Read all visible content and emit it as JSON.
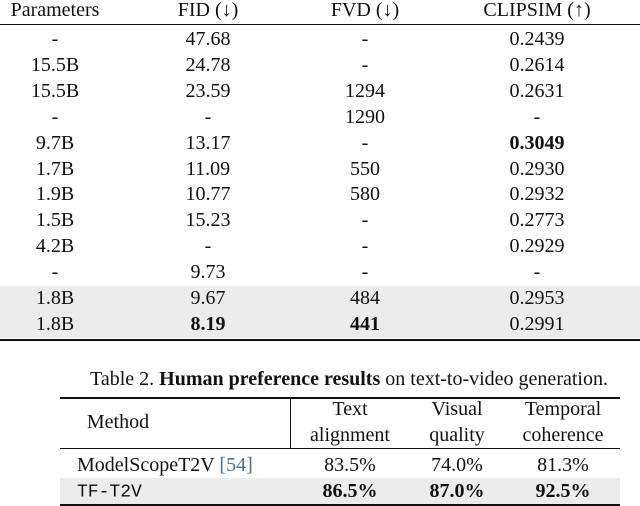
{
  "table1": {
    "header": [
      "Parameters",
      "FID (↓)",
      "FVD (↓)",
      "CLIPSIM (↑)"
    ],
    "rows": [
      {
        "cells": [
          "-",
          "47.68",
          "-",
          "0.2439"
        ]
      },
      {
        "cells": [
          "15.5B",
          "24.78",
          "-",
          "0.2614"
        ]
      },
      {
        "cells": [
          "15.5B",
          "23.59",
          "1294",
          "0.2631"
        ]
      },
      {
        "cells": [
          "-",
          "-",
          "1290",
          "-"
        ]
      },
      {
        "cells": [
          "9.7B",
          "13.17",
          "-",
          {
            "text": "0.3049",
            "bold": true
          }
        ]
      },
      {
        "cells": [
          "1.7B",
          "11.09",
          "550",
          "0.2930"
        ]
      },
      {
        "cells": [
          "1.9B",
          "10.77",
          "580",
          "0.2932"
        ]
      },
      {
        "cells": [
          "1.5B",
          "15.23",
          "-",
          "0.2773"
        ]
      },
      {
        "cells": [
          "4.2B",
          "-",
          "-",
          "0.2929"
        ]
      },
      {
        "cells": [
          "-",
          "9.73",
          "-",
          "-"
        ]
      },
      {
        "cells": [
          "1.8B",
          "9.67",
          "484",
          "0.2953"
        ],
        "highlight": true
      },
      {
        "cells": [
          "1.8B",
          {
            "text": "8.19",
            "bold": true
          },
          {
            "text": "441",
            "bold": true
          },
          "0.2991"
        ],
        "highlight": true
      }
    ]
  },
  "caption": {
    "label": "Table 2.",
    "bold": "Human preference results",
    "rest": "on text-to-video generation."
  },
  "table2": {
    "header": [
      [
        "Method"
      ],
      [
        "Text",
        "alignment"
      ],
      [
        "Visual",
        "quality"
      ],
      [
        "Temporal",
        "coherence"
      ]
    ],
    "rows": [
      {
        "cells": [
          {
            "text": "ModelScopeT2V",
            "cite": "[54]"
          },
          "83.5%",
          "74.0%",
          "81.3%"
        ]
      },
      {
        "cells": [
          {
            "text": "TF-T2V",
            "mono": true
          },
          {
            "text": "86.5%",
            "bold": true
          },
          {
            "text": "87.0%",
            "bold": true
          },
          {
            "text": "92.5%",
            "bold": true
          }
        ],
        "highlight": true
      }
    ]
  }
}
